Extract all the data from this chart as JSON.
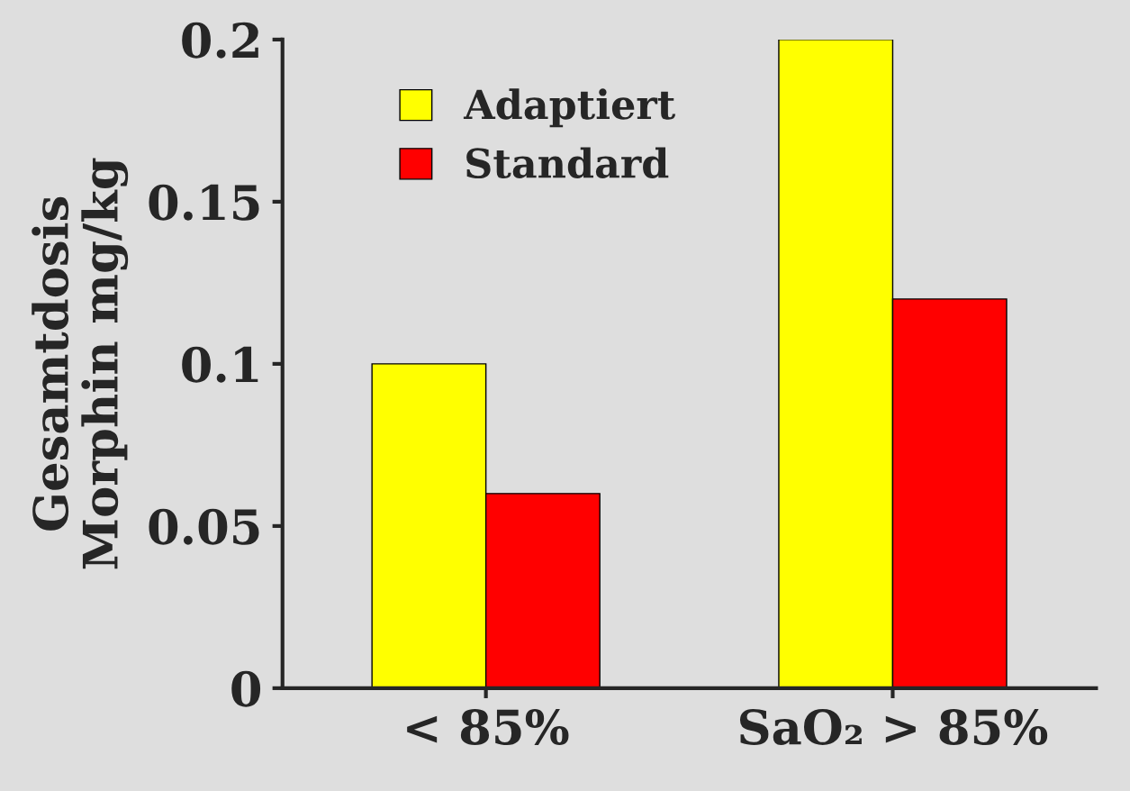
{
  "chart_data": {
    "type": "bar",
    "ylabel": "Gesamtdosis\nMorphin mg/kg",
    "categories": [
      "< 85%",
      "SaO₂ > 85%"
    ],
    "series": [
      {
        "name": "Adaptiert",
        "color": "#ffff00",
        "values": [
          0.1,
          0.2
        ]
      },
      {
        "name": "Standard",
        "color": "#ff0000",
        "values": [
          0.06,
          0.12
        ]
      }
    ],
    "ylim": [
      0,
      0.2
    ],
    "yticks": [
      0,
      0.05,
      0.1,
      0.15,
      0.2
    ],
    "grid": false,
    "legend": "top left"
  }
}
